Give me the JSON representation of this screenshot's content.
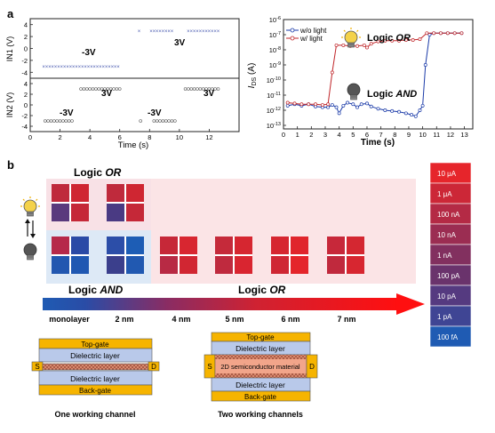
{
  "panel_a": {
    "label": "a",
    "in1": {
      "ylabel": "IN1 (V)",
      "yticks": [
        "4",
        "2",
        "0",
        "-2",
        "-4"
      ],
      "low_label": "-3V",
      "high_label": "3V",
      "points": [
        [
          0.9,
          -3
        ],
        [
          1.1,
          -3
        ],
        [
          1.3,
          -3
        ],
        [
          1.5,
          -3
        ],
        [
          1.7,
          -3
        ],
        [
          1.9,
          -3
        ],
        [
          2.1,
          -3
        ],
        [
          2.3,
          -3
        ],
        [
          2.5,
          -3
        ],
        [
          2.7,
          -3
        ],
        [
          2.9,
          -3
        ],
        [
          3.1,
          -3
        ],
        [
          3.3,
          -3
        ],
        [
          3.5,
          -3
        ],
        [
          3.7,
          -3
        ],
        [
          3.9,
          -3
        ],
        [
          4.1,
          -3
        ],
        [
          4.3,
          -3
        ],
        [
          4.5,
          -3
        ],
        [
          4.7,
          -3
        ],
        [
          4.9,
          -3
        ],
        [
          5.1,
          -3
        ],
        [
          5.3,
          -3
        ],
        [
          5.5,
          -3
        ],
        [
          5.7,
          -3
        ],
        [
          5.9,
          -3
        ],
        [
          7.3,
          3
        ],
        [
          8.1,
          3
        ],
        [
          8.3,
          3
        ],
        [
          8.5,
          3
        ],
        [
          8.7,
          3
        ],
        [
          8.9,
          3
        ],
        [
          9.1,
          3
        ],
        [
          9.3,
          3
        ],
        [
          9.5,
          3
        ],
        [
          10.6,
          3
        ],
        [
          10.8,
          3
        ],
        [
          11.0,
          3
        ],
        [
          11.2,
          3
        ],
        [
          11.4,
          3
        ],
        [
          11.6,
          3
        ],
        [
          11.8,
          3
        ],
        [
          12.0,
          3
        ],
        [
          12.2,
          3
        ],
        [
          12.4,
          3
        ],
        [
          12.6,
          3
        ]
      ]
    },
    "in2": {
      "ylabel": "IN2 (V)",
      "yticks": [
        "4",
        "2",
        "0",
        "-2",
        "-4"
      ],
      "xticks": [
        "0",
        "2",
        "4",
        "6",
        "8",
        "10",
        "12"
      ],
      "xlabel": "Time (s)",
      "labels": {
        "low1": "-3V",
        "high1": "3V",
        "low2": "-3V",
        "high2": "3V"
      },
      "points": [
        [
          1.0,
          -3
        ],
        [
          1.2,
          -3
        ],
        [
          1.4,
          -3
        ],
        [
          1.6,
          -3
        ],
        [
          1.8,
          -3
        ],
        [
          2.0,
          -3
        ],
        [
          2.2,
          -3
        ],
        [
          2.4,
          -3
        ],
        [
          2.6,
          -3
        ],
        [
          2.8,
          -3
        ],
        [
          3.4,
          3
        ],
        [
          3.6,
          3
        ],
        [
          3.8,
          3
        ],
        [
          4.0,
          3
        ],
        [
          4.2,
          3
        ],
        [
          4.4,
          3
        ],
        [
          4.6,
          3
        ],
        [
          4.8,
          3
        ],
        [
          5.0,
          3
        ],
        [
          5.2,
          3
        ],
        [
          5.4,
          3
        ],
        [
          5.6,
          3
        ],
        [
          5.8,
          3
        ],
        [
          6.0,
          3
        ],
        [
          7.4,
          -3
        ],
        [
          8.3,
          -3
        ],
        [
          8.5,
          -3
        ],
        [
          8.7,
          -3
        ],
        [
          8.9,
          -3
        ],
        [
          9.1,
          -3
        ],
        [
          9.3,
          -3
        ],
        [
          9.5,
          -3
        ],
        [
          9.7,
          -3
        ],
        [
          10.4,
          3
        ],
        [
          10.6,
          3
        ],
        [
          10.8,
          3
        ],
        [
          11.0,
          3
        ],
        [
          11.2,
          3
        ],
        [
          11.4,
          3
        ],
        [
          11.6,
          3
        ],
        [
          11.8,
          3
        ],
        [
          12.0,
          3
        ],
        [
          12.2,
          3
        ],
        [
          12.4,
          3
        ],
        [
          12.6,
          3
        ]
      ]
    },
    "ids": {
      "ylabel": "I",
      "ylabel_sub": "DS",
      "ylabel_unit": " (A)",
      "xlabel": "Time (s)",
      "xticks": [
        "0",
        "1",
        "2",
        "3",
        "4",
        "5",
        "6",
        "7",
        "8",
        "9",
        "10",
        "11",
        "12",
        "13"
      ],
      "ytick_exps": [
        -6,
        -7,
        -8,
        -9,
        -10,
        -11,
        -12,
        -13
      ],
      "legend": [
        {
          "name": "w/o light",
          "color": "#1a3aa8"
        },
        {
          "name": "w/  light",
          "color": "#c0262a"
        }
      ],
      "logic_or": "Logic ",
      "logic_or_it": "OR",
      "logic_and": "Logic ",
      "logic_and_it": "AND",
      "series_dark": [
        [
          0.3,
          -11.7
        ],
        [
          0.8,
          -11.6
        ],
        [
          1.3,
          -11.7
        ],
        [
          1.8,
          -11.6
        ],
        [
          2.3,
          -11.75
        ],
        [
          2.8,
          -11.8
        ],
        [
          3.2,
          -11.8
        ],
        [
          3.5,
          -11.65
        ],
        [
          3.8,
          -11.8
        ],
        [
          4.0,
          -12.2
        ],
        [
          4.3,
          -11.7
        ],
        [
          4.6,
          -11.5
        ],
        [
          5.0,
          -11.6
        ],
        [
          5.3,
          -11.8
        ],
        [
          5.6,
          -11.6
        ],
        [
          6.0,
          -11.55
        ],
        [
          6.3,
          -11.75
        ],
        [
          6.8,
          -11.9
        ],
        [
          7.3,
          -12.0
        ],
        [
          7.8,
          -12.05
        ],
        [
          8.3,
          -12.1
        ],
        [
          8.8,
          -12.2
        ],
        [
          9.2,
          -12.3
        ],
        [
          9.5,
          -12.4
        ],
        [
          9.8,
          -12.0
        ],
        [
          10.0,
          -11.7
        ],
        [
          10.2,
          -9.0
        ],
        [
          10.5,
          -7.0
        ],
        [
          10.8,
          -6.9
        ],
        [
          11.3,
          -6.9
        ],
        [
          11.8,
          -6.9
        ],
        [
          12.3,
          -6.9
        ],
        [
          12.8,
          -6.9
        ]
      ],
      "series_light": [
        [
          0.3,
          -11.5
        ],
        [
          0.8,
          -11.55
        ],
        [
          1.3,
          -11.6
        ],
        [
          1.8,
          -11.6
        ],
        [
          2.3,
          -11.6
        ],
        [
          2.8,
          -11.65
        ],
        [
          3.2,
          -11.6
        ],
        [
          3.5,
          -9.5
        ],
        [
          3.8,
          -7.7
        ],
        [
          4.3,
          -7.7
        ],
        [
          4.8,
          -7.75
        ],
        [
          5.3,
          -7.75
        ],
        [
          5.8,
          -7.7
        ],
        [
          6.0,
          -7.85
        ],
        [
          6.3,
          -7.6
        ],
        [
          6.8,
          -7.45
        ],
        [
          7.3,
          -7.4
        ],
        [
          7.8,
          -7.4
        ],
        [
          8.3,
          -7.4
        ],
        [
          8.8,
          -7.35
        ],
        [
          9.3,
          -7.35
        ],
        [
          9.8,
          -7.3
        ],
        [
          10.3,
          -6.9
        ],
        [
          10.8,
          -6.9
        ],
        [
          11.3,
          -6.9
        ],
        [
          11.8,
          -6.9
        ],
        [
          12.3,
          -6.9
        ],
        [
          12.8,
          -6.9
        ]
      ]
    }
  },
  "panel_b": {
    "label": "b",
    "logic_or_top": {
      "prefix": "Logic ",
      "it": "OR"
    },
    "logic_and": {
      "prefix": "Logic ",
      "it": "AND"
    },
    "logic_or_main": {
      "prefix": "Logic ",
      "it": "OR"
    },
    "thickness_labels": [
      "monolayer",
      "2 nm",
      "4 nm",
      "5 nm",
      "6 nm",
      "7 nm"
    ],
    "colorbar": [
      "10 μA",
      "1 μA",
      "100 nA",
      "10 nA",
      "1 nA",
      "100 pA",
      "10 pA",
      "1 pA",
      "100 fA"
    ],
    "colorbar_colors": [
      "#e6252b",
      "#cc2737",
      "#b42a45",
      "#9b2d52",
      "#82305f",
      "#6a336c",
      "#553a80",
      "#3f4594",
      "#1f5bb3"
    ],
    "grids": {
      "or_top": [
        [
          "#bf2a3c",
          "#cf2632",
          "#5a3a7d",
          "#c52838"
        ],
        [
          "#bf2a3c",
          "#cf2632",
          "#4a3a83",
          "#c52838"
        ]
      ],
      "and_row": [
        [
          "#b6294a",
          "#2a4aa6",
          "#2257b0",
          "#2058b2"
        ],
        [
          "#2c4ea8",
          "#1d5db5",
          "#3b3f8c",
          "#2159b1"
        ]
      ],
      "or_row": [
        [
          "#c62838",
          "#d82630",
          "#b82a44",
          "#d12632"
        ],
        [
          "#c52a3a",
          "#d62630",
          "#bf2a3e",
          "#d92530"
        ],
        [
          "#d62630",
          "#e0252c",
          "#cf2734",
          "#e4252b"
        ],
        [
          "#c7283a",
          "#d42731",
          "#c0293d",
          "#d72630"
        ]
      ]
    },
    "stack1": {
      "top": "Top-gate",
      "diel1": "Dielectric layer",
      "diel2": "Dielectric layer",
      "bottom": "Back-gate",
      "s": "S",
      "d": "D",
      "caption": "One working channel"
    },
    "stack2": {
      "top": "Top-gate",
      "diel1": "Dielectric layer",
      "channel": "2D semiconductor material",
      "diel2": "Dielectric layer",
      "bottom": "Back-gate",
      "s": "S",
      "d": "D",
      "caption": "Two working channels"
    }
  }
}
